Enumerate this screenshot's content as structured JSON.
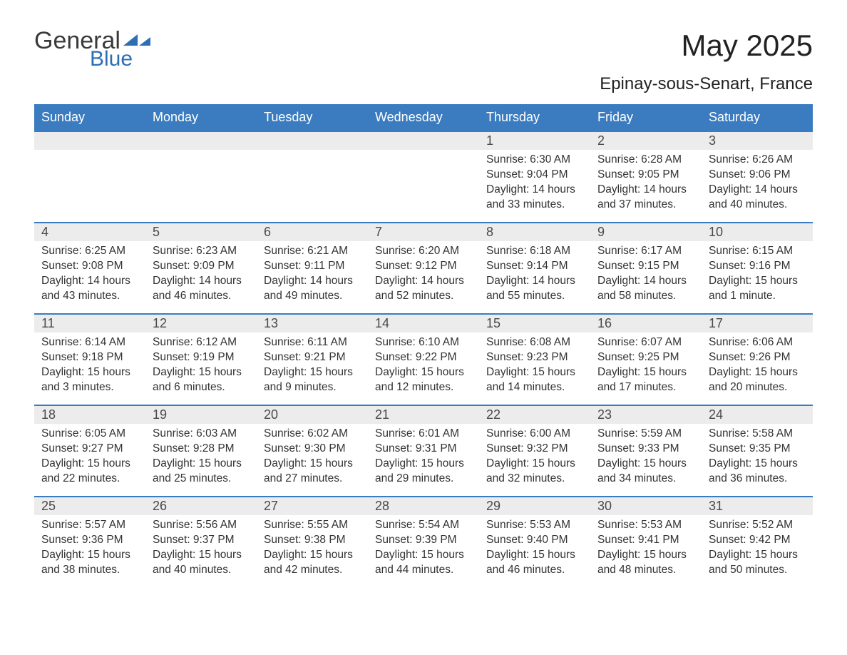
{
  "colors": {
    "header_bg": "#3a7cbf",
    "header_text": "#ffffff",
    "week_border": "#3a7cbf",
    "daynum_bg": "#ececec",
    "body_bg": "#ffffff",
    "text": "#333333",
    "logo_blue": "#2d6fb5",
    "logo_gray": "#3a3a3a"
  },
  "typography": {
    "title_fontsize": 42,
    "subtitle_fontsize": 24,
    "dayheader_fontsize": 18,
    "daynum_fontsize": 18,
    "body_fontsize": 15.5
  },
  "logo": {
    "line1": "General",
    "line2": "Blue"
  },
  "title": "May 2025",
  "location": "Epinay-sous-Senart, France",
  "day_names": [
    "Sunday",
    "Monday",
    "Tuesday",
    "Wednesday",
    "Thursday",
    "Friday",
    "Saturday"
  ],
  "calendar": {
    "type": "table",
    "columns": 7,
    "rows": 5,
    "weeks": [
      [
        {
          "n": "",
          "sunrise": "",
          "sunset": "",
          "daylight": ""
        },
        {
          "n": "",
          "sunrise": "",
          "sunset": "",
          "daylight": ""
        },
        {
          "n": "",
          "sunrise": "",
          "sunset": "",
          "daylight": ""
        },
        {
          "n": "",
          "sunrise": "",
          "sunset": "",
          "daylight": ""
        },
        {
          "n": "1",
          "sunrise": "Sunrise: 6:30 AM",
          "sunset": "Sunset: 9:04 PM",
          "daylight": "Daylight: 14 hours and 33 minutes."
        },
        {
          "n": "2",
          "sunrise": "Sunrise: 6:28 AM",
          "sunset": "Sunset: 9:05 PM",
          "daylight": "Daylight: 14 hours and 37 minutes."
        },
        {
          "n": "3",
          "sunrise": "Sunrise: 6:26 AM",
          "sunset": "Sunset: 9:06 PM",
          "daylight": "Daylight: 14 hours and 40 minutes."
        }
      ],
      [
        {
          "n": "4",
          "sunrise": "Sunrise: 6:25 AM",
          "sunset": "Sunset: 9:08 PM",
          "daylight": "Daylight: 14 hours and 43 minutes."
        },
        {
          "n": "5",
          "sunrise": "Sunrise: 6:23 AM",
          "sunset": "Sunset: 9:09 PM",
          "daylight": "Daylight: 14 hours and 46 minutes."
        },
        {
          "n": "6",
          "sunrise": "Sunrise: 6:21 AM",
          "sunset": "Sunset: 9:11 PM",
          "daylight": "Daylight: 14 hours and 49 minutes."
        },
        {
          "n": "7",
          "sunrise": "Sunrise: 6:20 AM",
          "sunset": "Sunset: 9:12 PM",
          "daylight": "Daylight: 14 hours and 52 minutes."
        },
        {
          "n": "8",
          "sunrise": "Sunrise: 6:18 AM",
          "sunset": "Sunset: 9:14 PM",
          "daylight": "Daylight: 14 hours and 55 minutes."
        },
        {
          "n": "9",
          "sunrise": "Sunrise: 6:17 AM",
          "sunset": "Sunset: 9:15 PM",
          "daylight": "Daylight: 14 hours and 58 minutes."
        },
        {
          "n": "10",
          "sunrise": "Sunrise: 6:15 AM",
          "sunset": "Sunset: 9:16 PM",
          "daylight": "Daylight: 15 hours and 1 minute."
        }
      ],
      [
        {
          "n": "11",
          "sunrise": "Sunrise: 6:14 AM",
          "sunset": "Sunset: 9:18 PM",
          "daylight": "Daylight: 15 hours and 3 minutes."
        },
        {
          "n": "12",
          "sunrise": "Sunrise: 6:12 AM",
          "sunset": "Sunset: 9:19 PM",
          "daylight": "Daylight: 15 hours and 6 minutes."
        },
        {
          "n": "13",
          "sunrise": "Sunrise: 6:11 AM",
          "sunset": "Sunset: 9:21 PM",
          "daylight": "Daylight: 15 hours and 9 minutes."
        },
        {
          "n": "14",
          "sunrise": "Sunrise: 6:10 AM",
          "sunset": "Sunset: 9:22 PM",
          "daylight": "Daylight: 15 hours and 12 minutes."
        },
        {
          "n": "15",
          "sunrise": "Sunrise: 6:08 AM",
          "sunset": "Sunset: 9:23 PM",
          "daylight": "Daylight: 15 hours and 14 minutes."
        },
        {
          "n": "16",
          "sunrise": "Sunrise: 6:07 AM",
          "sunset": "Sunset: 9:25 PM",
          "daylight": "Daylight: 15 hours and 17 minutes."
        },
        {
          "n": "17",
          "sunrise": "Sunrise: 6:06 AM",
          "sunset": "Sunset: 9:26 PM",
          "daylight": "Daylight: 15 hours and 20 minutes."
        }
      ],
      [
        {
          "n": "18",
          "sunrise": "Sunrise: 6:05 AM",
          "sunset": "Sunset: 9:27 PM",
          "daylight": "Daylight: 15 hours and 22 minutes."
        },
        {
          "n": "19",
          "sunrise": "Sunrise: 6:03 AM",
          "sunset": "Sunset: 9:28 PM",
          "daylight": "Daylight: 15 hours and 25 minutes."
        },
        {
          "n": "20",
          "sunrise": "Sunrise: 6:02 AM",
          "sunset": "Sunset: 9:30 PM",
          "daylight": "Daylight: 15 hours and 27 minutes."
        },
        {
          "n": "21",
          "sunrise": "Sunrise: 6:01 AM",
          "sunset": "Sunset: 9:31 PM",
          "daylight": "Daylight: 15 hours and 29 minutes."
        },
        {
          "n": "22",
          "sunrise": "Sunrise: 6:00 AM",
          "sunset": "Sunset: 9:32 PM",
          "daylight": "Daylight: 15 hours and 32 minutes."
        },
        {
          "n": "23",
          "sunrise": "Sunrise: 5:59 AM",
          "sunset": "Sunset: 9:33 PM",
          "daylight": "Daylight: 15 hours and 34 minutes."
        },
        {
          "n": "24",
          "sunrise": "Sunrise: 5:58 AM",
          "sunset": "Sunset: 9:35 PM",
          "daylight": "Daylight: 15 hours and 36 minutes."
        }
      ],
      [
        {
          "n": "25",
          "sunrise": "Sunrise: 5:57 AM",
          "sunset": "Sunset: 9:36 PM",
          "daylight": "Daylight: 15 hours and 38 minutes."
        },
        {
          "n": "26",
          "sunrise": "Sunrise: 5:56 AM",
          "sunset": "Sunset: 9:37 PM",
          "daylight": "Daylight: 15 hours and 40 minutes."
        },
        {
          "n": "27",
          "sunrise": "Sunrise: 5:55 AM",
          "sunset": "Sunset: 9:38 PM",
          "daylight": "Daylight: 15 hours and 42 minutes."
        },
        {
          "n": "28",
          "sunrise": "Sunrise: 5:54 AM",
          "sunset": "Sunset: 9:39 PM",
          "daylight": "Daylight: 15 hours and 44 minutes."
        },
        {
          "n": "29",
          "sunrise": "Sunrise: 5:53 AM",
          "sunset": "Sunset: 9:40 PM",
          "daylight": "Daylight: 15 hours and 46 minutes."
        },
        {
          "n": "30",
          "sunrise": "Sunrise: 5:53 AM",
          "sunset": "Sunset: 9:41 PM",
          "daylight": "Daylight: 15 hours and 48 minutes."
        },
        {
          "n": "31",
          "sunrise": "Sunrise: 5:52 AM",
          "sunset": "Sunset: 9:42 PM",
          "daylight": "Daylight: 15 hours and 50 minutes."
        }
      ]
    ]
  }
}
